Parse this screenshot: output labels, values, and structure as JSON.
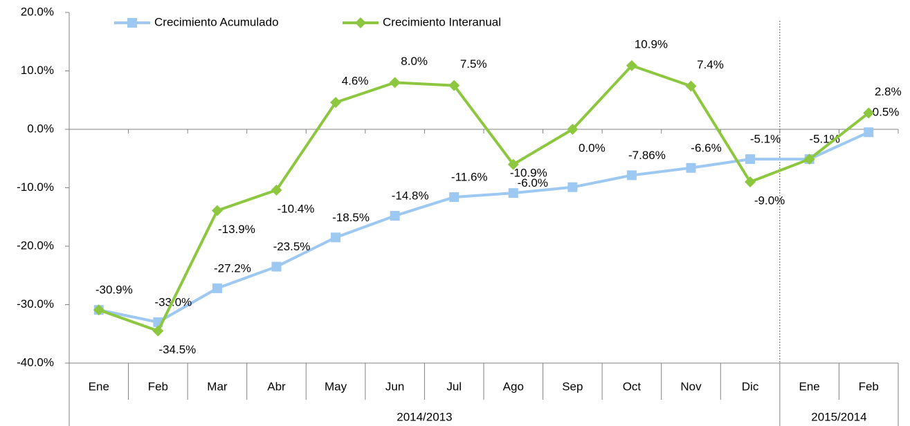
{
  "chart_data": {
    "type": "line",
    "categories": [
      "Ene",
      "Feb",
      "Mar",
      "Abr",
      "May",
      "Jun",
      "Jul",
      "Ago",
      "Sep",
      "Oct",
      "Nov",
      "Dic",
      "Ene",
      "Feb"
    ],
    "groups": [
      {
        "label": "2014/2013",
        "span": 12
      },
      {
        "label": "2015/2014",
        "span": 2
      }
    ],
    "series": [
      {
        "name": "Crecimiento Acumulado",
        "color": "#9dc8f2",
        "marker": "square",
        "values": [
          -30.9,
          -33.0,
          -27.2,
          -23.5,
          -18.5,
          -14.8,
          -11.6,
          -10.9,
          -9.9,
          -7.86,
          -6.6,
          -5.1,
          -5.1,
          -0.5
        ],
        "value_labels": [
          "-30.9%",
          "-33.0%",
          "-27.2%",
          "-23.5%",
          "-18.5%",
          "-14.8%",
          "-11.6%",
          "-10.9%",
          null,
          "-7.86%",
          "-6.6%",
          "-5.1%",
          "-5.1%",
          "-0.5%"
        ]
      },
      {
        "name": "Crecimiento Interanual",
        "color": "#8dc63f",
        "marker": "diamond",
        "values": [
          -30.9,
          -34.5,
          -13.9,
          -10.4,
          4.6,
          8.0,
          7.5,
          -6.0,
          0.0,
          10.9,
          7.4,
          -9.0,
          -5.1,
          2.8
        ],
        "value_labels": [
          null,
          "-34.5%",
          "-13.9%",
          "-10.4%",
          "4.6%",
          "8.0%",
          "7.5%",
          "-6.0%",
          "0.0%",
          "10.9%",
          "7.4%",
          "-9.0%",
          null,
          "2.8%"
        ]
      }
    ],
    "ylim": [
      -40,
      20
    ],
    "yticks": [
      {
        "value": -40,
        "label": "-40.0%"
      },
      {
        "value": -30,
        "label": "-30.0%"
      },
      {
        "value": -20,
        "label": "-20.0%"
      },
      {
        "value": -10,
        "label": "-10.0%"
      },
      {
        "value": 0,
        "label": "0.0%"
      },
      {
        "value": 10,
        "label": "10.0%"
      },
      {
        "value": 20,
        "label": "20.0%"
      }
    ],
    "legend": "top"
  }
}
